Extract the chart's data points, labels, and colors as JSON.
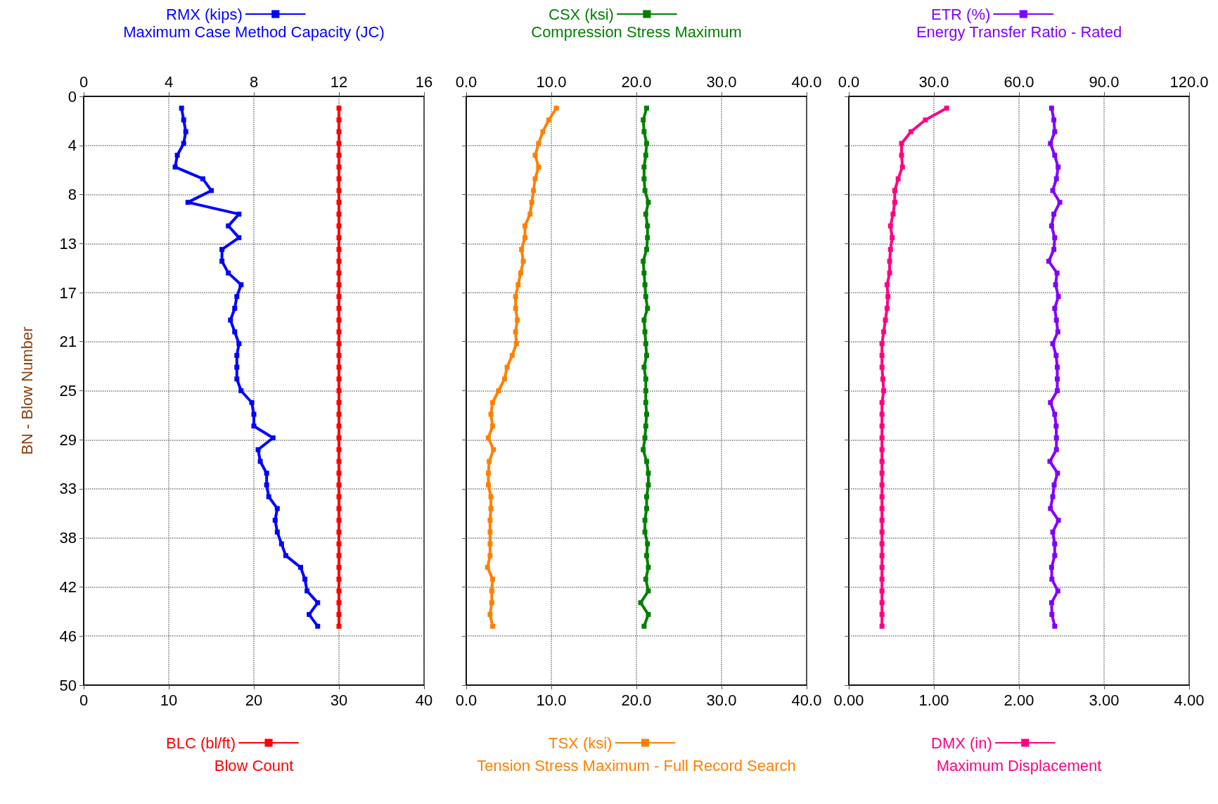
{
  "chart_data": [
    {
      "type": "line",
      "orientation": "horizontal",
      "ylabel": "BN - Blow Number",
      "x2label": "Maximum Case Method Capacity (JC)",
      "xlabel": "Blow Count",
      "x": [
        1,
        2,
        3,
        4,
        5,
        6,
        7,
        8,
        9,
        10,
        11,
        12,
        13,
        14,
        15,
        16,
        17,
        18,
        19,
        20,
        21,
        22,
        23,
        24,
        25,
        26,
        27,
        28,
        29,
        30,
        31,
        32,
        33,
        34,
        35,
        36,
        37,
        38,
        39,
        40,
        41,
        42,
        43,
        44,
        45
      ],
      "series": [
        {
          "name": "RMX (kips)",
          "color": "#0000ff",
          "axis": "x2",
          "values": [
            4.6,
            4.7,
            4.8,
            4.7,
            4.4,
            4.3,
            5.6,
            6.0,
            4.9,
            7.3,
            6.8,
            7.3,
            6.5,
            6.5,
            6.8,
            7.4,
            7.2,
            7.1,
            6.9,
            7.1,
            7.3,
            7.2,
            7.2,
            7.2,
            7.4,
            7.9,
            8.0,
            8.0,
            8.9,
            8.2,
            8.3,
            8.6,
            8.6,
            8.7,
            9.1,
            9.0,
            9.1,
            9.3,
            9.5,
            10.2,
            10.4,
            10.5,
            11.0,
            10.6,
            11.0
          ]
        },
        {
          "name": "BLC (bl/ft)",
          "color": "#ff0000",
          "values": [
            30,
            30,
            30,
            30,
            30,
            30,
            30,
            30,
            30,
            30,
            30,
            30,
            30,
            30,
            30,
            30,
            30,
            30,
            30,
            30,
            30,
            30,
            30,
            30,
            30,
            30,
            30,
            30,
            30,
            30,
            30,
            30,
            30,
            30,
            30,
            30,
            30,
            30,
            30,
            30,
            30,
            30,
            30,
            30,
            30
          ]
        }
      ],
      "x2lim": [
        0,
        16
      ],
      "x2ticks": [
        0,
        4,
        8,
        12,
        16
      ],
      "xlim": [
        0,
        40
      ],
      "xticks": [
        0,
        10,
        20,
        30,
        40
      ],
      "ylim": [
        50,
        0
      ],
      "yticks": [
        0,
        {
          "value": 4.17,
          "label": "4"
        },
        {
          "value": 8.33,
          "label": "8"
        },
        {
          "value": 12.5,
          "label": "13"
        },
        {
          "value": 16.67,
          "label": "17"
        },
        {
          "value": 20.83,
          "label": "21"
        },
        25,
        {
          "value": 29.17,
          "label": "29"
        },
        {
          "value": 33.33,
          "label": "33"
        },
        {
          "value": 37.5,
          "label": "38"
        },
        {
          "value": 41.67,
          "label": "42"
        },
        {
          "value": 45.83,
          "label": "46"
        },
        50
      ],
      "grid": true,
      "legend": "top",
      "marker": "square",
      "line_style": "solid"
    },
    {
      "type": "line",
      "orientation": "horizontal",
      "x2label": "Compression Stress Maximum",
      "xlabel": "Tension Stress Maximum - Full Record Search",
      "x": [
        1,
        2,
        3,
        4,
        5,
        6,
        7,
        8,
        9,
        10,
        11,
        12,
        13,
        14,
        15,
        16,
        17,
        18,
        19,
        20,
        21,
        22,
        23,
        24,
        25,
        26,
        27,
        28,
        29,
        30,
        31,
        32,
        33,
        34,
        35,
        36,
        37,
        38,
        39,
        40,
        41,
        42,
        43,
        44,
        45
      ],
      "series": [
        {
          "name": "CSX (ksi)",
          "color": "#008000",
          "axis": "x2",
          "values": [
            21.2,
            20.8,
            20.9,
            21.2,
            21.1,
            20.9,
            20.9,
            21.0,
            21.4,
            21.1,
            21.3,
            21.3,
            21.2,
            20.8,
            20.9,
            21.0,
            21.1,
            21.3,
            20.9,
            21.0,
            21.1,
            21.2,
            20.9,
            21.1,
            21.1,
            21.1,
            21.2,
            21.1,
            21.0,
            20.8,
            21.2,
            21.4,
            21.4,
            21.2,
            21.2,
            21.0,
            21.0,
            21.3,
            21.2,
            21.4,
            21.1,
            21.4,
            20.5,
            21.4,
            20.9
          ]
        },
        {
          "name": "TSX (ksi)",
          "color": "#ff8000",
          "values": [
            10.6,
            9.7,
            9.0,
            8.5,
            8.1,
            8.5,
            8.1,
            7.9,
            7.7,
            7.5,
            6.9,
            6.9,
            6.5,
            6.7,
            6.4,
            6.1,
            5.8,
            5.8,
            6.0,
            5.8,
            5.9,
            5.4,
            4.8,
            4.5,
            3.8,
            3.1,
            2.9,
            3.1,
            2.6,
            3.2,
            2.7,
            2.6,
            2.6,
            2.9,
            2.9,
            2.8,
            2.8,
            2.8,
            2.8,
            2.5,
            3.1,
            3.0,
            3.0,
            2.8,
            3.1
          ]
        }
      ],
      "x2lim": [
        0,
        40
      ],
      "x2ticks": [
        {
          "value": 0,
          "label": "0.0"
        },
        {
          "value": 10,
          "label": "10.0"
        },
        {
          "value": 20,
          "label": "20.0"
        },
        {
          "value": 30,
          "label": "30.0"
        },
        {
          "value": 40,
          "label": "40.0"
        }
      ],
      "xlim": [
        0,
        40
      ],
      "xticks": [
        {
          "value": 0,
          "label": "0.0"
        },
        {
          "value": 10,
          "label": "10.0"
        },
        {
          "value": 20,
          "label": "20.0"
        },
        {
          "value": 30,
          "label": "30.0"
        },
        {
          "value": 40,
          "label": "40.0"
        }
      ],
      "ylim": [
        50,
        0
      ],
      "yticks": [
        {
          "value": 0,
          "label": null
        },
        {
          "value": 4.17,
          "label": null
        },
        {
          "value": 8.33,
          "label": null
        },
        {
          "value": 12.5,
          "label": null
        },
        {
          "value": 16.67,
          "label": null
        },
        {
          "value": 20.83,
          "label": null
        },
        {
          "value": 25,
          "label": null
        },
        {
          "value": 29.17,
          "label": null
        },
        {
          "value": 33.33,
          "label": null
        },
        {
          "value": 37.5,
          "label": null
        },
        {
          "value": 41.67,
          "label": null
        },
        {
          "value": 45.83,
          "label": null
        },
        {
          "value": 50,
          "label": null
        }
      ],
      "tick_labels": "x",
      "grid": true,
      "legend": "top",
      "marker": "square",
      "line_style": "solid"
    },
    {
      "type": "line",
      "orientation": "horizontal",
      "x2label": "Energy Transfer Ratio - Rated",
      "xlabel": "Maximum Displacement",
      "x": [
        1,
        2,
        3,
        4,
        5,
        6,
        7,
        8,
        9,
        10,
        11,
        12,
        13,
        14,
        15,
        16,
        17,
        18,
        19,
        20,
        21,
        22,
        23,
        24,
        25,
        26,
        27,
        28,
        29,
        30,
        31,
        32,
        33,
        34,
        35,
        36,
        37,
        38,
        39,
        40,
        41,
        42,
        43,
        44,
        45
      ],
      "series": [
        {
          "name": "ETR (%)",
          "color": "#8000ff",
          "axis": "x2",
          "values": [
            71.5,
            72.3,
            72.6,
            71.1,
            72.6,
            73.8,
            73.2,
            71.9,
            74.4,
            72.3,
            71.5,
            72.6,
            72.3,
            70.5,
            73.4,
            72.9,
            73.9,
            72.6,
            73.2,
            73.7,
            71.9,
            73.1,
            73.5,
            73.5,
            73.5,
            71.1,
            72.6,
            73.1,
            73.2,
            73.2,
            70.9,
            73.6,
            72.4,
            71.9,
            71.1,
            73.9,
            71.9,
            72.6,
            72.6,
            71.5,
            71.6,
            73.7,
            71.5,
            71.6,
            72.6
          ]
        },
        {
          "name": "DMX (in)",
          "color": "#ff0080",
          "values": [
            1.15,
            0.9,
            0.73,
            0.62,
            0.62,
            0.63,
            0.58,
            0.54,
            0.54,
            0.52,
            0.49,
            0.51,
            0.49,
            0.48,
            0.48,
            0.45,
            0.46,
            0.45,
            0.43,
            0.41,
            0.39,
            0.39,
            0.39,
            0.4,
            0.41,
            0.39,
            0.39,
            0.39,
            0.39,
            0.39,
            0.39,
            0.39,
            0.39,
            0.39,
            0.39,
            0.39,
            0.39,
            0.39,
            0.39,
            0.39,
            0.39,
            0.39,
            0.39,
            0.39,
            0.39
          ]
        }
      ],
      "x2lim": [
        0,
        120
      ],
      "x2ticks": [
        {
          "value": 0,
          "label": "0.0"
        },
        {
          "value": 30,
          "label": "30.0"
        },
        {
          "value": 60,
          "label": "60.0"
        },
        {
          "value": 90,
          "label": "90.0"
        },
        {
          "value": 120,
          "label": "120.0"
        }
      ],
      "xlim": [
        0,
        4
      ],
      "xticks": [
        {
          "value": 0,
          "label": "0.00"
        },
        {
          "value": 1,
          "label": "1.00"
        },
        {
          "value": 2,
          "label": "2.00"
        },
        {
          "value": 3,
          "label": "3.00"
        },
        {
          "value": 4,
          "label": "4.00"
        }
      ],
      "ylim": [
        50,
        0
      ],
      "yticks": [
        {
          "value": 0,
          "label": null
        },
        {
          "value": 4.17,
          "label": null
        },
        {
          "value": 8.33,
          "label": null
        },
        {
          "value": 12.5,
          "label": null
        },
        {
          "value": 16.67,
          "label": null
        },
        {
          "value": 20.83,
          "label": null
        },
        {
          "value": 25,
          "label": null
        },
        {
          "value": 29.17,
          "label": null
        },
        {
          "value": 33.33,
          "label": null
        },
        {
          "value": 37.5,
          "label": null
        },
        {
          "value": 41.67,
          "label": null
        },
        {
          "value": 45.83,
          "label": null
        },
        {
          "value": 50,
          "label": null
        }
      ],
      "tick_labels": "x",
      "grid": true,
      "legend": "top",
      "marker": "square",
      "line_style": "solid"
    }
  ]
}
